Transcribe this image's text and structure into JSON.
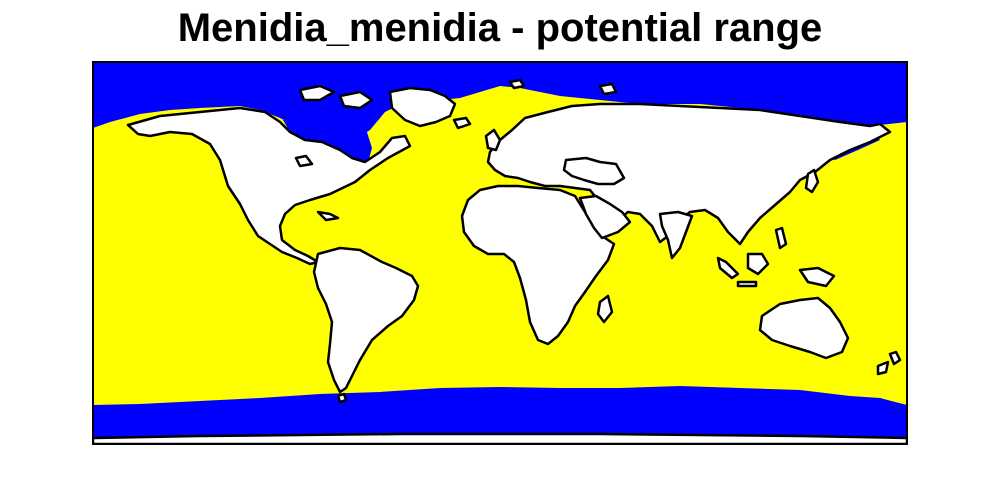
{
  "title": "Menidia_menidia - potential range",
  "legend": [],
  "colors": {
    "suitable_ocean": "#ffff00",
    "unsuitable_ocean": "#0000ff",
    "land": "#ffffff",
    "coastline": "#000000",
    "frame": "#000000"
  },
  "map": {
    "projection": "equirectangular",
    "extent": "world",
    "frame": true,
    "axes": false
  }
}
